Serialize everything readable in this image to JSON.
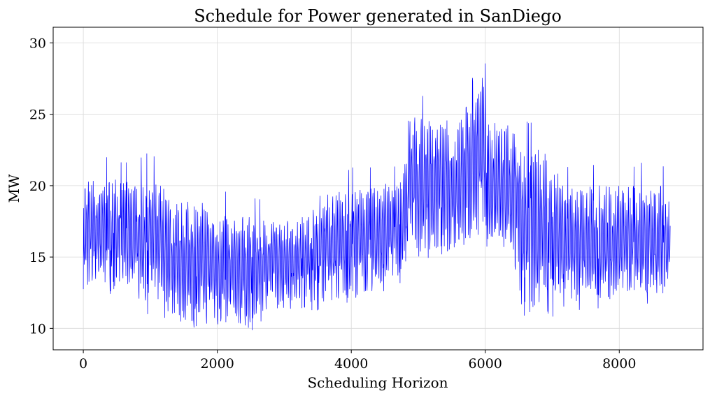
{
  "chart_data": {
    "type": "line",
    "title": "Schedule for Power generated in SanDiego",
    "xlabel": "Scheduling Horizon",
    "ylabel": "MW",
    "xlim": [
      -450,
      9250
    ],
    "ylim": [
      8.5,
      31.1
    ],
    "xticks": [
      0,
      2000,
      4000,
      6000,
      8000
    ],
    "yticks": [
      10,
      15,
      20,
      25,
      30
    ],
    "grid": true,
    "series": [
      {
        "color": "#0000ff",
        "segments": [
          {
            "x0": 0,
            "x1": 900,
            "lo": 12.3,
            "hi": 22.1
          },
          {
            "x0": 900,
            "x1": 1300,
            "lo": 11.0,
            "hi": 22.3
          },
          {
            "x0": 1300,
            "x1": 2000,
            "lo": 9.6,
            "hi": 20.8
          },
          {
            "x0": 2000,
            "x1": 2700,
            "lo": 9.5,
            "hi": 19.6
          },
          {
            "x0": 2700,
            "x1": 3500,
            "lo": 11.3,
            "hi": 18.8
          },
          {
            "x0": 3500,
            "x1": 4000,
            "lo": 11.2,
            "hi": 21.4
          },
          {
            "x0": 4000,
            "x1": 4500,
            "lo": 11.9,
            "hi": 21.4
          },
          {
            "x0": 4500,
            "x1": 4850,
            "lo": 13.0,
            "hi": 21.6
          },
          {
            "x0": 4850,
            "x1": 5200,
            "lo": 14.8,
            "hi": 26.9
          },
          {
            "x0": 5200,
            "x1": 5800,
            "lo": 14.6,
            "hi": 26.6
          },
          {
            "x0": 5800,
            "x1": 6050,
            "lo": 16.0,
            "hi": 30.0
          },
          {
            "x0": 6050,
            "x1": 6500,
            "lo": 14.4,
            "hi": 26.5
          },
          {
            "x0": 6500,
            "x1": 7100,
            "lo": 10.5,
            "hi": 25.0
          },
          {
            "x0": 7100,
            "x1": 8000,
            "lo": 11.2,
            "hi": 21.8
          },
          {
            "x0": 8000,
            "x1": 8760,
            "lo": 11.6,
            "hi": 21.7
          }
        ]
      }
    ]
  }
}
